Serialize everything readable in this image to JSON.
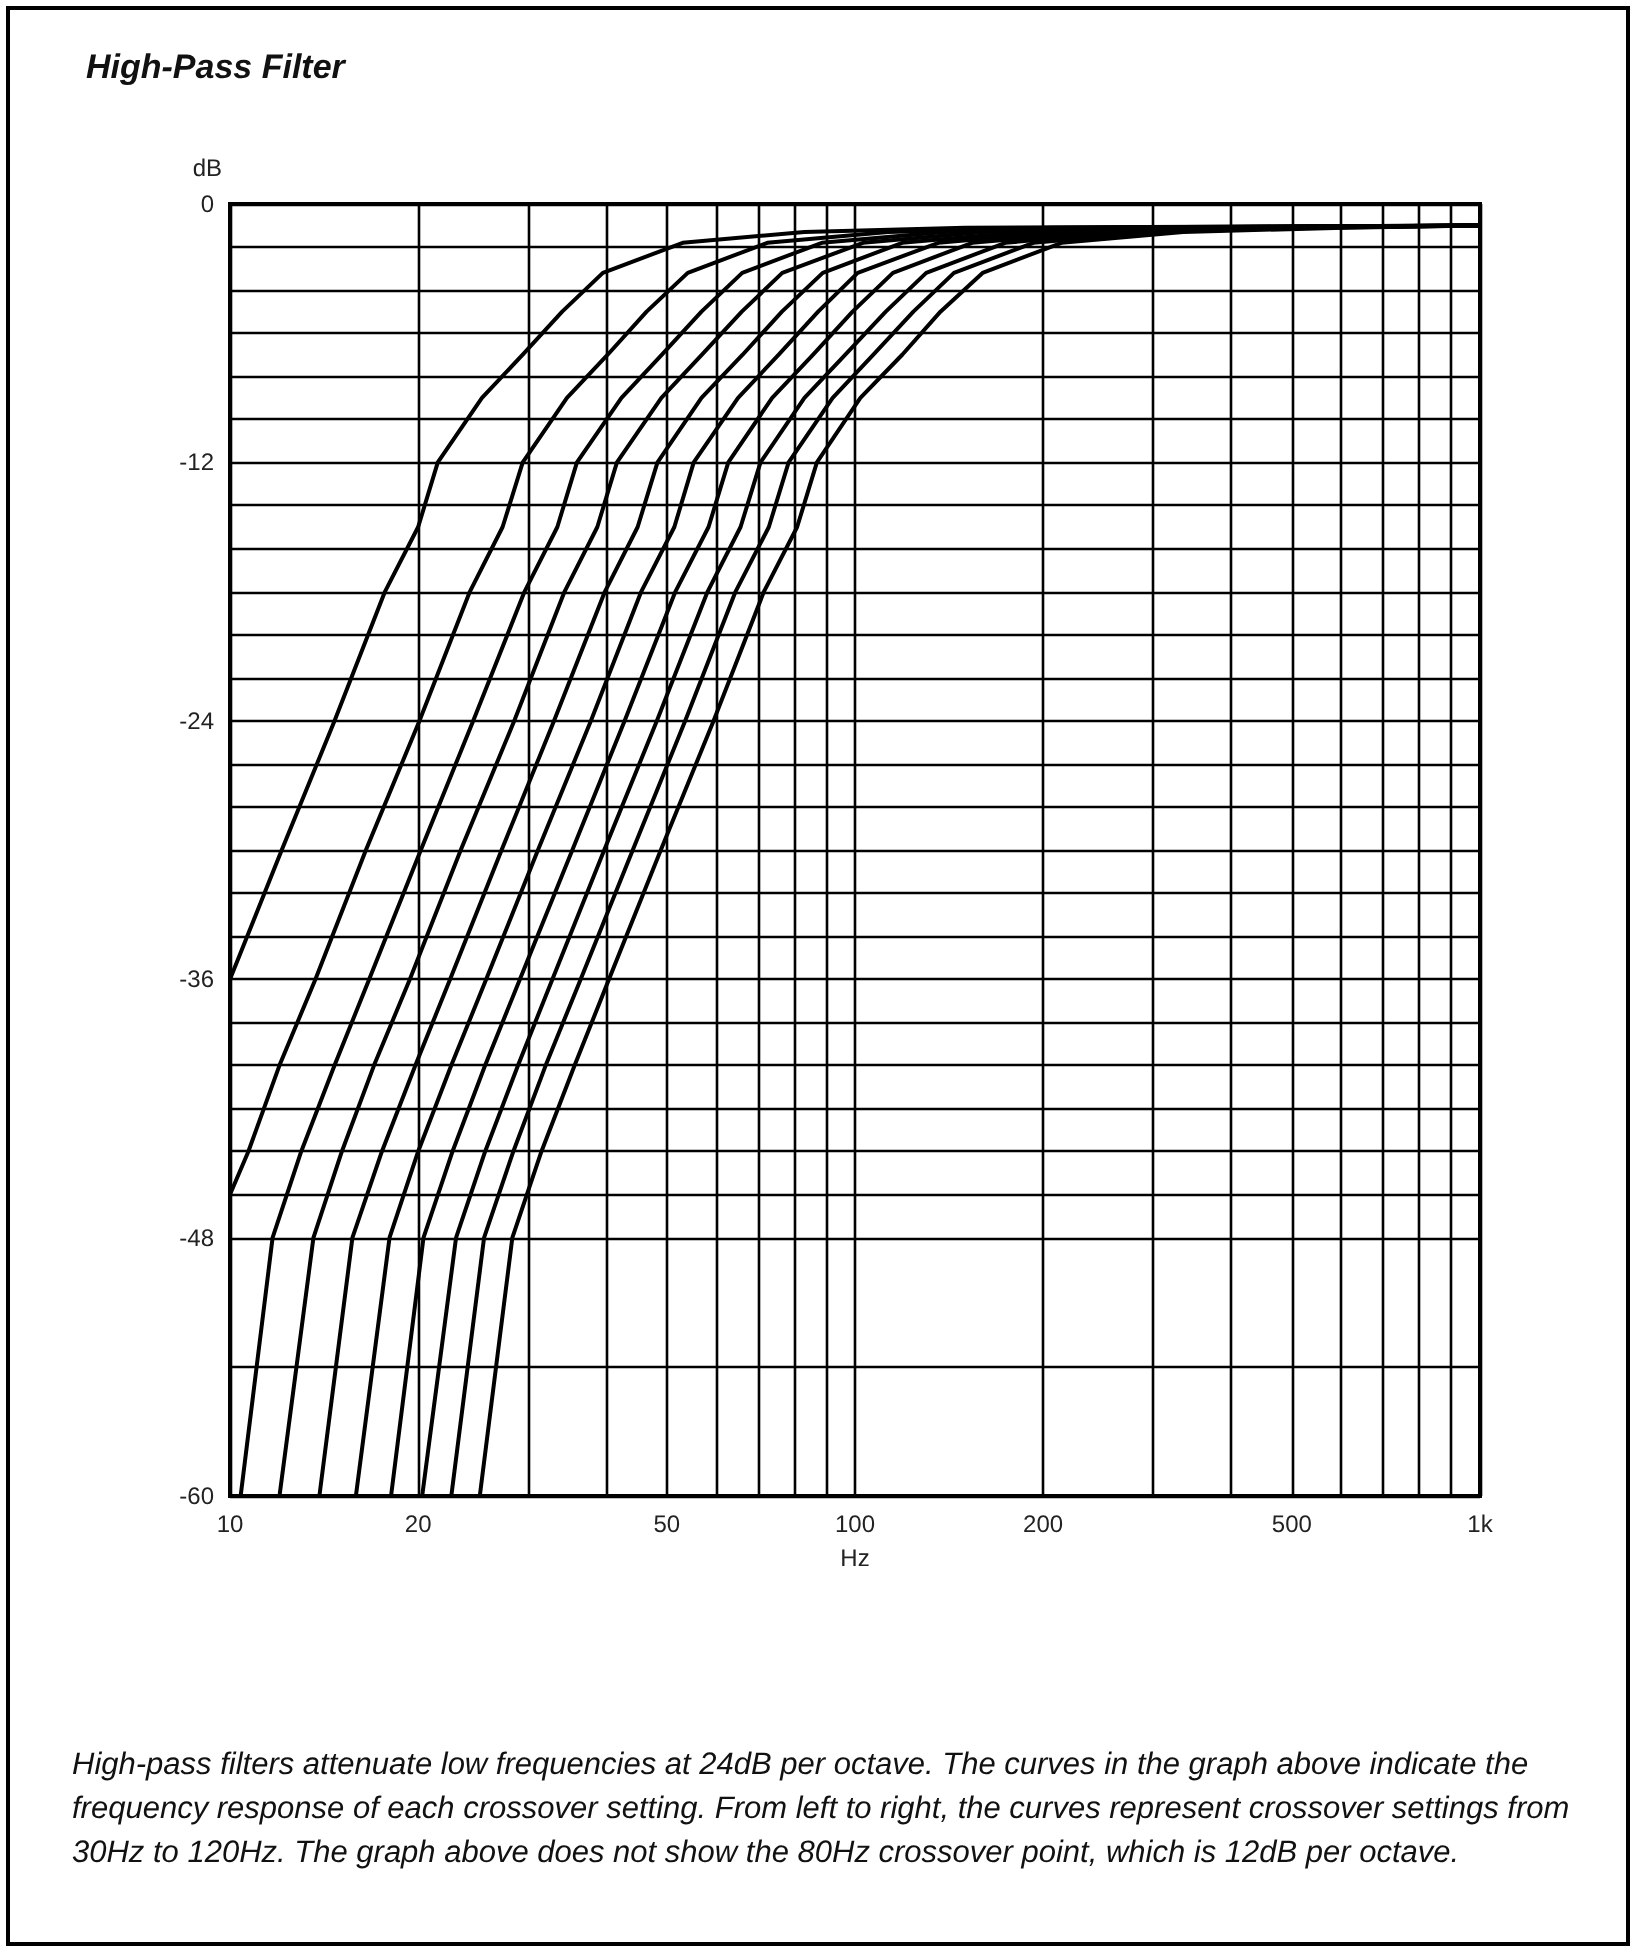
{
  "chart_data": {
    "type": "line",
    "title": "High-Pass Filter",
    "xlabel": "Hz",
    "ylabel": "dB",
    "annotations": [
      "High-pass filters attenuate low frequencies at 24dB per octave. The curves in the graph above indicate the frequency response of each crossover setting. From left to right, the curves represent crossover settings from 30Hz to 120Hz. The graph above does not show the 80Hz crossover point, which is 12dB per octave."
    ],
    "log": "x",
    "grid": true,
    "marker": "none",
    "line_style": "solid",
    "xlim": [
      10,
      1000
    ],
    "ylim": [
      -60,
      0
    ],
    "xticks": [
      10,
      20,
      {
        "value": 30,
        "label": null
      },
      {
        "value": 40,
        "label": null
      },
      50,
      {
        "value": 60,
        "label": null
      },
      {
        "value": 70,
        "label": null
      },
      {
        "value": 80,
        "label": null
      },
      {
        "value": 90,
        "label": null
      },
      100,
      200,
      {
        "value": 300,
        "label": null
      },
      {
        "value": 400,
        "label": null
      },
      500,
      {
        "value": 600,
        "label": null
      },
      {
        "value": 700,
        "label": null
      },
      {
        "value": 800,
        "label": null
      },
      {
        "value": 900,
        "label": null
      },
      {
        "value": 1000,
        "label": "1k"
      }
    ],
    "yticks": [
      0,
      {
        "value": -2,
        "label": null
      },
      {
        "value": -4,
        "label": null
      },
      {
        "value": -6,
        "label": null
      },
      {
        "value": -8,
        "label": null
      },
      {
        "value": -10,
        "label": null
      },
      -12,
      {
        "value": -14,
        "label": null
      },
      {
        "value": -16,
        "label": null
      },
      {
        "value": -18,
        "label": null
      },
      {
        "value": -20,
        "label": null
      },
      {
        "value": -22,
        "label": null
      },
      -24,
      {
        "value": -26,
        "label": null
      },
      {
        "value": -28,
        "label": null
      },
      {
        "value": -30,
        "label": null
      },
      {
        "value": -32,
        "label": null
      },
      {
        "value": -34,
        "label": null
      },
      -36,
      {
        "value": -38,
        "label": null
      },
      {
        "value": -40,
        "label": null
      },
      {
        "value": -42,
        "label": null
      },
      {
        "value": -44,
        "label": null
      },
      {
        "value": -46,
        "label": null
      },
      -48,
      {
        "value": -54,
        "label": null
      },
      -60
    ],
    "series": [
      {
        "color": "#000000",
        "x": [
          10,
          12.1,
          14.7,
          17.7,
          20,
          21.5,
          25.3,
          29.4,
          34,
          39.5,
          53,
          83,
          150,
          1000
        ],
        "values": [
          -36,
          -30,
          -24,
          -18,
          -15,
          -12,
          -9,
          -7,
          -5,
          -3.2,
          -1.8,
          -1.3,
          -1.1,
          -1
        ]
      },
      {
        "color": "#000000",
        "x": [
          10,
          10.7,
          12.0,
          13.7,
          16.5,
          20.1,
          24.2,
          27.3,
          29.4,
          34.6,
          40.2,
          46.4,
          54.0,
          72.4,
          113,
          205,
          1000
        ],
        "values": [
          -46,
          -44,
          -40,
          -36,
          -30,
          -24,
          -18,
          -15,
          -12,
          -9,
          -7,
          -5,
          -3.2,
          -1.8,
          -1.3,
          -1.1,
          -1
        ]
      },
      {
        "color": "#000000",
        "x": [
          10.4,
          11.7,
          13.0,
          14.7,
          16.7,
          20.2,
          24.5,
          29.6,
          33.4,
          35.9,
          42.3,
          49.1,
          56.8,
          66.0,
          88.5,
          139,
          251,
          1000
        ],
        "values": [
          -60,
          -48,
          -44,
          -40,
          -36,
          -30,
          -24,
          -18,
          -15,
          -12,
          -9,
          -7,
          -5,
          -3.2,
          -1.8,
          -1.3,
          -1.1,
          -1
        ]
      },
      {
        "color": "#000000",
        "x": [
          12.0,
          13.6,
          15.1,
          17.0,
          19.4,
          23.4,
          28.5,
          34.3,
          38.7,
          41.6,
          49.0,
          56.9,
          65.9,
          76.5,
          103,
          161,
          291,
          1000
        ],
        "values": [
          -60,
          -48,
          -44,
          -40,
          -36,
          -30,
          -24,
          -18,
          -15,
          -12,
          -9,
          -7,
          -5,
          -3.2,
          -1.8,
          -1.3,
          -1.1,
          -1
        ]
      },
      {
        "color": "#000000",
        "x": [
          13.9,
          15.7,
          17.5,
          19.8,
          22.5,
          27.2,
          33.0,
          39.8,
          44.9,
          48.3,
          56.8,
          66.1,
          76.4,
          88.8,
          119,
          187,
          337,
          1000
        ],
        "values": [
          -60,
          -48,
          -44,
          -40,
          -36,
          -30,
          -24,
          -18,
          -15,
          -12,
          -9,
          -7,
          -5,
          -3.2,
          -1.8,
          -1.3,
          -1.1,
          -1
        ]
      },
      {
        "color": "#000000",
        "x": [
          15.9,
          18.0,
          20.0,
          22.6,
          25.7,
          31.1,
          37.8,
          45.5,
          51.4,
          55.2,
          65.0,
          75.5,
          87.3,
          101,
          136,
          213,
          385,
          1000
        ],
        "values": [
          -60,
          -48,
          -44,
          -40,
          -36,
          -30,
          -24,
          -18,
          -15,
          -12,
          -9,
          -7,
          -5,
          -3.2,
          -1.8,
          -1.3,
          -1.1,
          -1
        ]
      },
      {
        "color": "#000000",
        "x": [
          18.1,
          20.4,
          22.7,
          25.6,
          29.1,
          35.3,
          42.8,
          51.6,
          58.3,
          62.7,
          73.7,
          85.7,
          99.1,
          115,
          154,
          242,
          437,
          1000
        ],
        "values": [
          -60,
          -48,
          -44,
          -40,
          -36,
          -30,
          -24,
          -18,
          -15,
          -12,
          -9,
          -7,
          -5,
          -3.2,
          -1.8,
          -1.3,
          -1.1,
          -1
        ]
      },
      {
        "color": "#000000",
        "x": [
          20.3,
          23.0,
          25.6,
          28.9,
          32.8,
          39.7,
          48.2,
          58.1,
          65.6,
          70.6,
          83.0,
          96.5,
          112,
          130,
          174,
          272,
          492,
          1000
        ],
        "values": [
          -60,
          -48,
          -44,
          -40,
          -36,
          -30,
          -24,
          -18,
          -15,
          -12,
          -9,
          -7,
          -5,
          -3.2,
          -1.8,
          -1.3,
          -1.1,
          -1
        ]
      },
      {
        "color": "#000000",
        "x": [
          22.6,
          25.5,
          28.4,
          32.0,
          36.4,
          44.1,
          53.5,
          64.4,
          72.8,
          78.3,
          92.1,
          107,
          124,
          144,
          193,
          302,
          546,
          1000
        ],
        "values": [
          -60,
          -48,
          -44,
          -40,
          -36,
          -30,
          -24,
          -18,
          -15,
          -12,
          -9,
          -7,
          -5,
          -3.2,
          -1.8,
          -1.3,
          -1.1,
          -1
        ]
      },
      {
        "color": "#000000",
        "x": [
          25.1,
          28.3,
          31.5,
          35.6,
          40.4,
          48.9,
          59.4,
          71.5,
          80.8,
          86.9,
          102,
          119,
          137,
          160,
          214,
          335,
          606,
          1000
        ],
        "values": [
          -60,
          -48,
          -44,
          -40,
          -36,
          -30,
          -24,
          -18,
          -15,
          -12,
          -9,
          -7,
          -5,
          -3.2,
          -1.8,
          -1.3,
          -1.1,
          -1
        ]
      }
    ]
  }
}
